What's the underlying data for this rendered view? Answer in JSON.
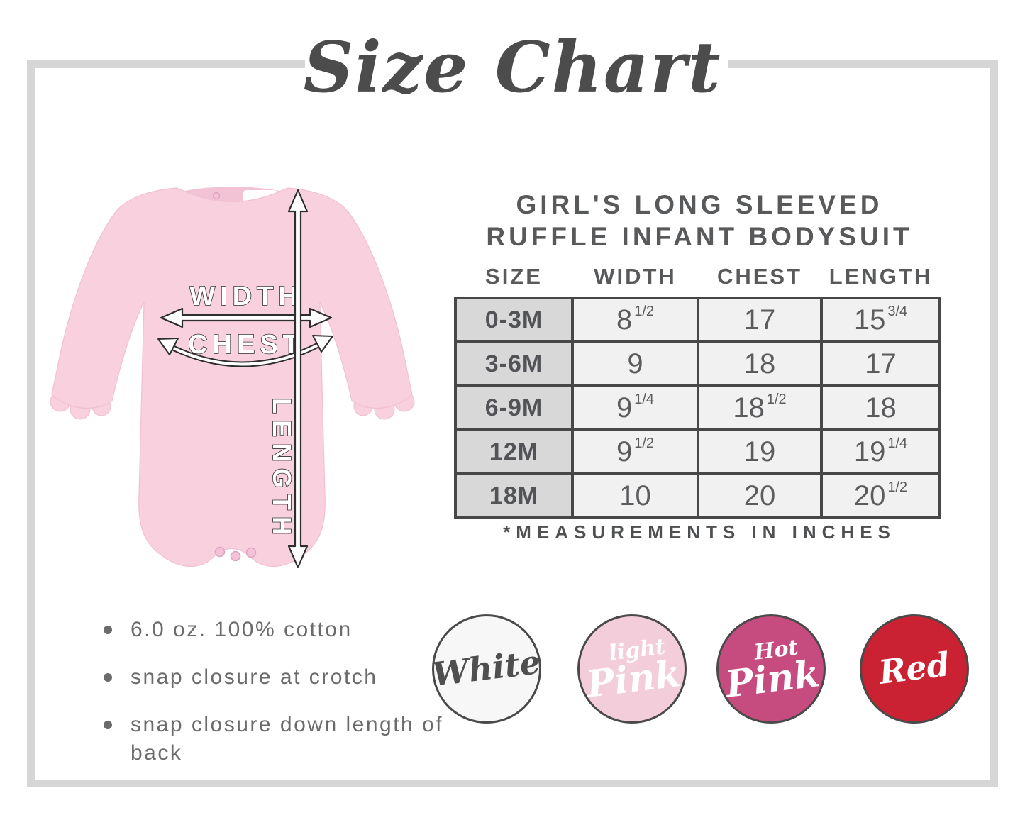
{
  "title": "Size Chart",
  "product": {
    "name_line1": "GIRL'S LONG SLEEVED",
    "name_line2": "RUFFLE INFANT BODYSUIT"
  },
  "chart_data": {
    "type": "table",
    "title": "GIRL'S LONG SLEEVED RUFFLE INFANT BODYSUIT",
    "columns": [
      "SIZE",
      "WIDTH",
      "CHEST",
      "LENGTH"
    ],
    "rows": [
      [
        "0-3M",
        "8 1/2",
        "17",
        "15 3/4"
      ],
      [
        "3-6M",
        "9",
        "18",
        "17"
      ],
      [
        "6-9M",
        "9 1/4",
        "18 1/2",
        "18"
      ],
      [
        "12M",
        "9 1/2",
        "19",
        "19 1/4"
      ],
      [
        "18M",
        "10",
        "20",
        "20 1/2"
      ]
    ],
    "footnote": "*MEASUREMENTS IN INCHES"
  },
  "diagram": {
    "labels": {
      "width": "WIDTH",
      "chest": "CHEST",
      "length": "LENGTH"
    },
    "garment_color": "#F8D0DE"
  },
  "features": [
    "6.0 oz. 100% cotton",
    "snap closure at crotch",
    "snap closure down length of back"
  ],
  "colors": [
    {
      "name": "White",
      "label_lines": [
        "White"
      ],
      "fill": "#F7F7F7",
      "text_color": "#4F4F4F"
    },
    {
      "name": "Light Pink",
      "label_lines": [
        "light",
        "Pink"
      ],
      "fill": "#F3CEDA",
      "text_color": "#FFFFFF"
    },
    {
      "name": "Hot Pink",
      "label_lines": [
        "Hot",
        "Pink"
      ],
      "fill": "#C64B7E",
      "text_color": "#FFFFFF"
    },
    {
      "name": "Red",
      "label_lines": [
        "Red"
      ],
      "fill": "#CB2233",
      "text_color": "#FFFFFF"
    }
  ],
  "theme": {
    "frame_color": "#D6D6D6",
    "table_border": "#474747",
    "size_col_bg": "#D8D8D9",
    "value_col_bg": "#F1F1F2",
    "text_dark": "#4C4C4C"
  }
}
